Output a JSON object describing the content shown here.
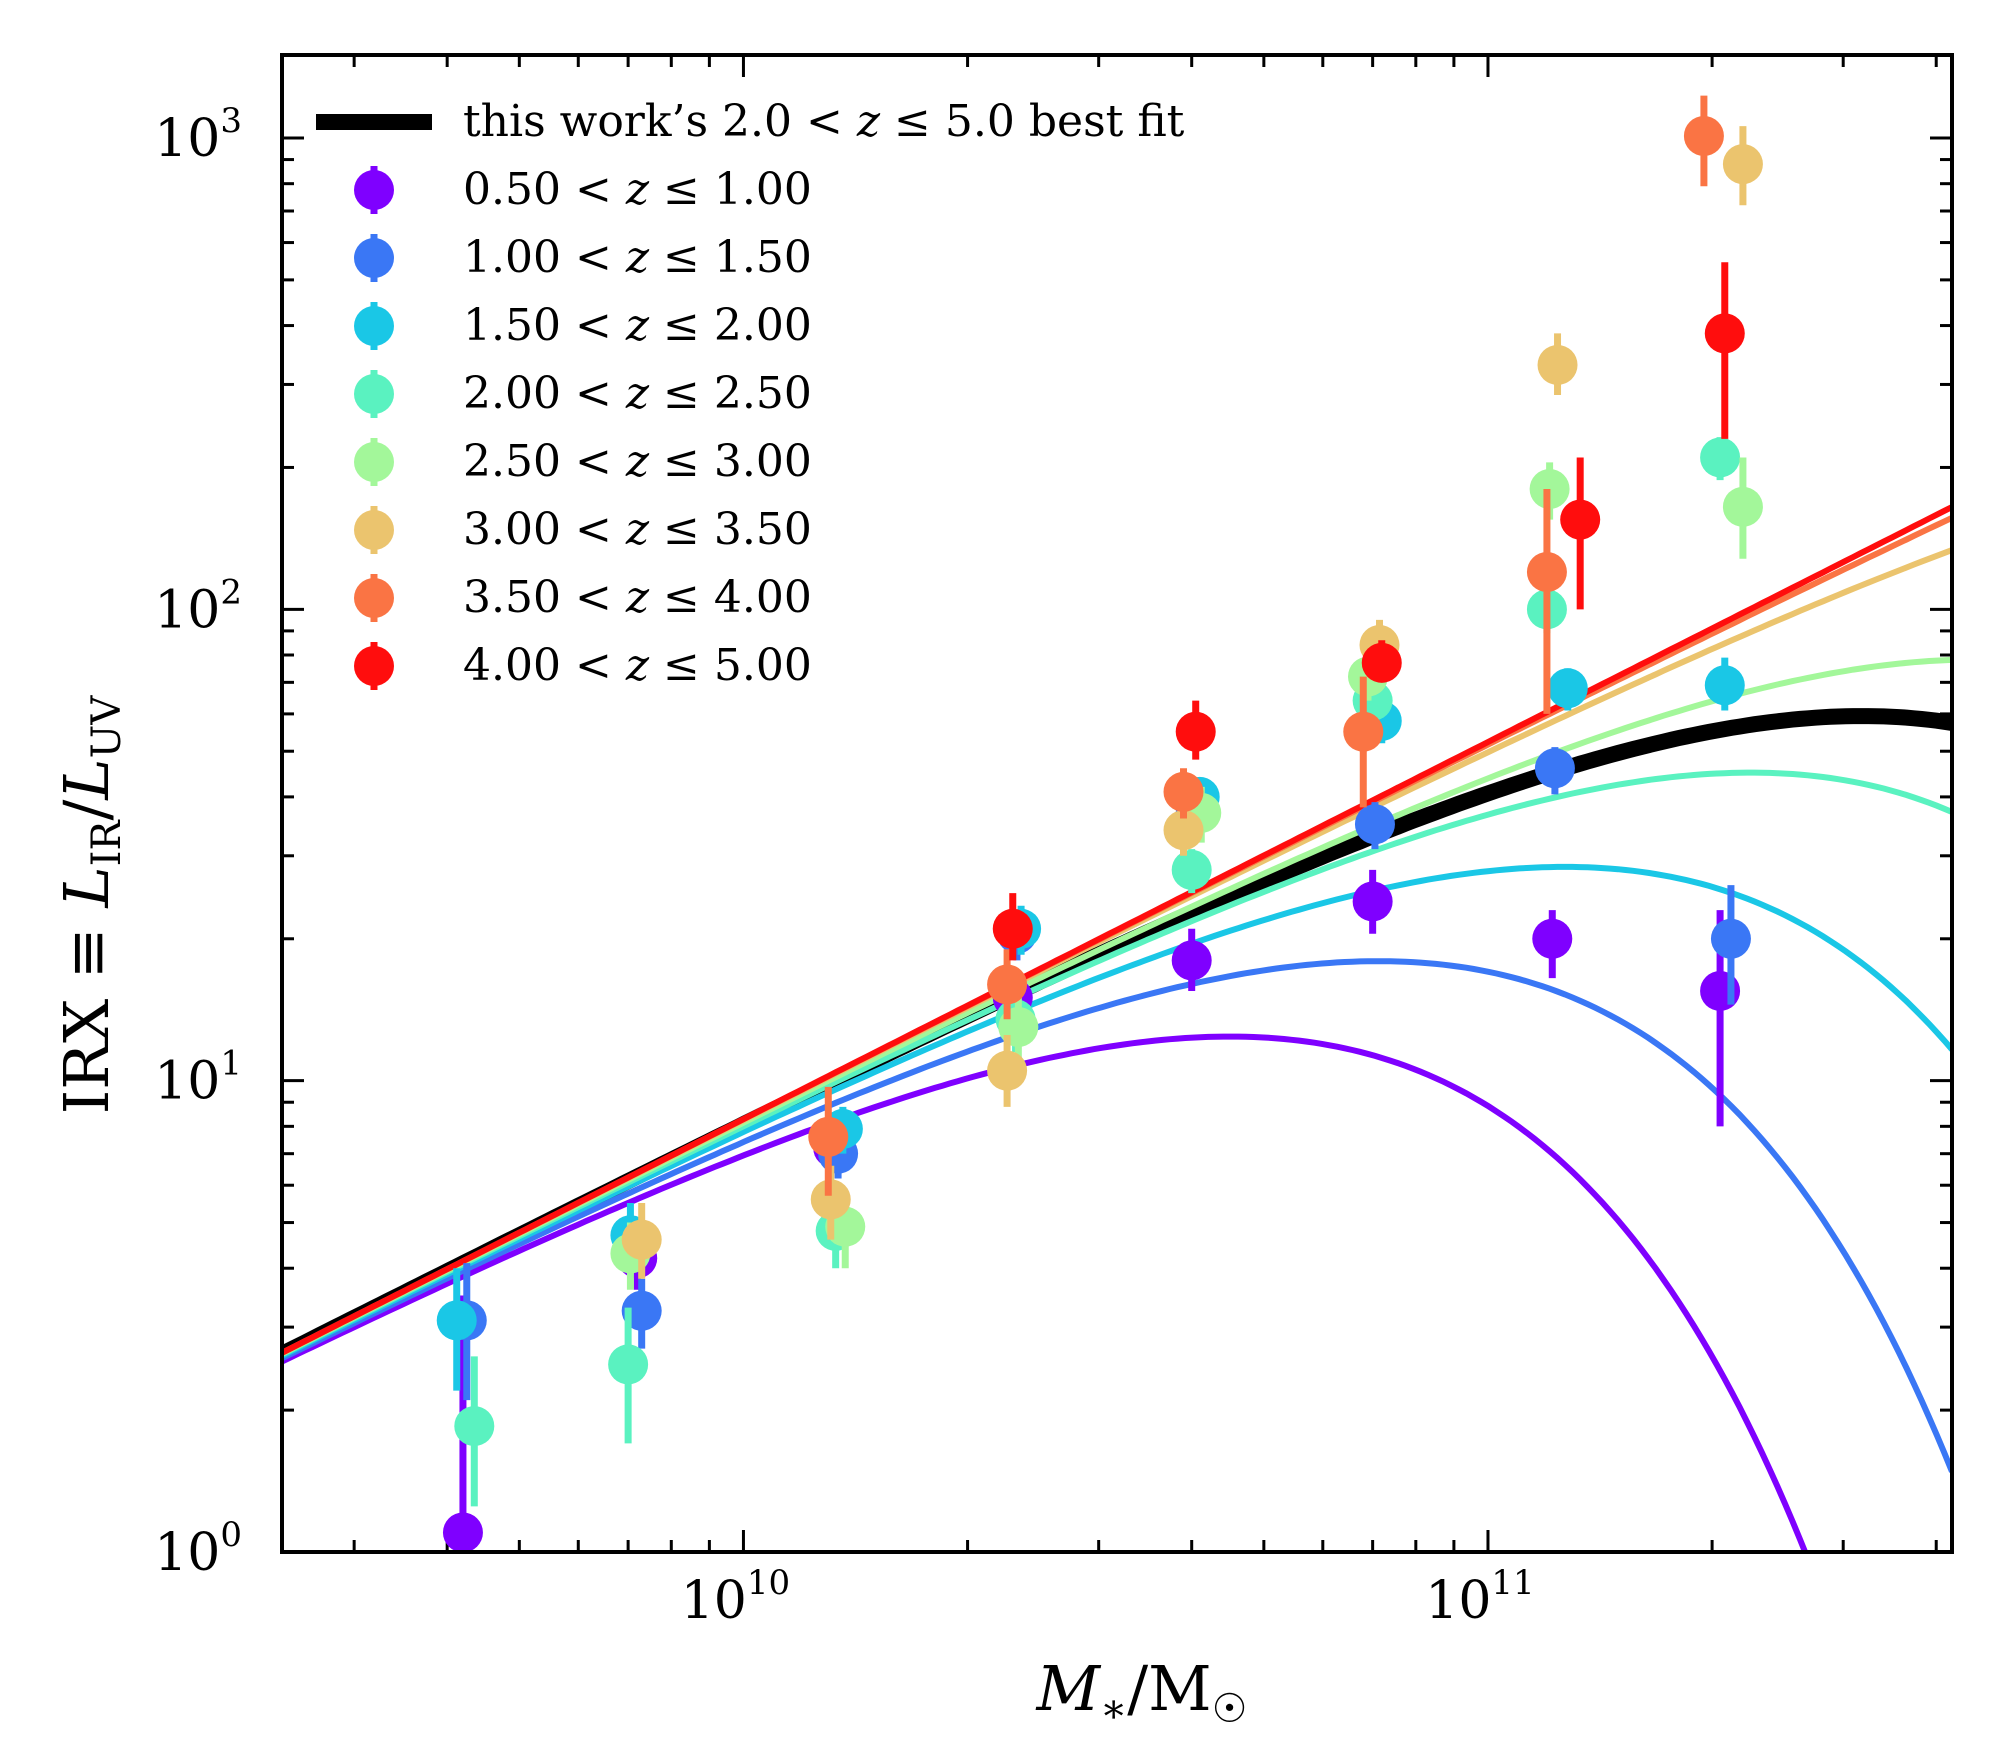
{
  "chart_data": {
    "type": "scatter",
    "title": "",
    "xlabel": "M*/M☉",
    "ylabel": "IRX ≡ L_IR/L_UV",
    "xscale": "log",
    "yscale": "log",
    "xlim": [
      2400000000.0,
      420000000000.0
    ],
    "ylim": [
      1,
      1500
    ],
    "x_ticks": [
      {
        "value": 10000000000.0,
        "base": "10",
        "exp": "10"
      },
      {
        "value": 100000000000.0,
        "base": "10",
        "exp": "11"
      }
    ],
    "y_ticks": [
      {
        "value": 1,
        "base": "10",
        "exp": "0"
      },
      {
        "value": 10,
        "base": "10",
        "exp": "1"
      },
      {
        "value": 100,
        "base": "10",
        "exp": "2"
      },
      {
        "value": 1000,
        "base": "10",
        "exp": "3"
      }
    ],
    "legend_position": "top-left",
    "best_fit": {
      "name": "this work's 2.0 < z ≤ 5.0 best fit",
      "label_parts": [
        "this work’s 2.0 < ",
        "z",
        " ≤ 5.0 best fit"
      ],
      "color": "#000000",
      "params": {
        "A": 3.3,
        "alpha": 0.8,
        "x0_log": 9.5,
        "mc_log": 11.6
      }
    },
    "series": [
      {
        "name": "0.50 < z ≤ 1.00",
        "lo": "0.50",
        "hi": "1.00",
        "color": "#7f00ff",
        "curve": {
          "mc_log": 10.75
        },
        "points": [
          {
            "x": 4200000000.0,
            "y": 1.1,
            "ylo": 1.0,
            "yhi": 3.5
          },
          {
            "x": 7200000000.0,
            "y": 4.2,
            "ylo": 3.6,
            "yhi": 4.9
          },
          {
            "x": 13200000000.0,
            "y": 7.2,
            "ylo": 6.4,
            "yhi": 8.1
          },
          {
            "x": 23000000000.0,
            "y": 15,
            "ylo": 13,
            "yhi": 17
          },
          {
            "x": 40000000000.0,
            "y": 18,
            "ylo": 15.5,
            "yhi": 21
          },
          {
            "x": 70000000000.0,
            "y": 24,
            "ylo": 20.5,
            "yhi": 28
          },
          {
            "x": 122000000000.0,
            "y": 20,
            "ylo": 16.5,
            "yhi": 23
          },
          {
            "x": 205000000000.0,
            "y": 15.5,
            "ylo": 8,
            "yhi": 23
          }
        ]
      },
      {
        "name": "1.00 < z ≤ 1.50",
        "lo": "1.00",
        "hi": "1.50",
        "color": "#3a77f5",
        "curve": {
          "mc_log": 10.95
        },
        "points": [
          {
            "x": 4250000000.0,
            "y": 3.1,
            "ylo": 2.1,
            "yhi": 4.1
          },
          {
            "x": 7300000000.0,
            "y": 3.25,
            "ylo": 2.7,
            "yhi": 3.8
          },
          {
            "x": 13400000000.0,
            "y": 7.0,
            "ylo": 6.2,
            "yhi": 7.9
          },
          {
            "x": 23300000000.0,
            "y": 20.5,
            "ylo": 18,
            "yhi": 23
          },
          {
            "x": 40500000000.0,
            "y": 37,
            "ylo": 33,
            "yhi": 41
          },
          {
            "x": 70500000000.0,
            "y": 35,
            "ylo": 31,
            "yhi": 39
          },
          {
            "x": 123000000000.0,
            "y": 46,
            "ylo": 40.5,
            "yhi": 51
          },
          {
            "x": 212000000000.0,
            "y": 20,
            "ylo": 14.5,
            "yhi": 26
          }
        ]
      },
      {
        "name": "1.50 < z ≤ 2.00",
        "lo": "1.50",
        "hi": "2.00",
        "color": "#1ac7e6",
        "curve": {
          "mc_log": 11.2
        },
        "points": [
          {
            "x": 4120000000.0,
            "y": 3.1,
            "ylo": 2.2,
            "yhi": 4.0
          },
          {
            "x": 7050000000.0,
            "y": 4.7,
            "ylo": 3.9,
            "yhi": 5.5
          },
          {
            "x": 13600000000.0,
            "y": 7.9,
            "ylo": 7.0,
            "yhi": 8.8
          },
          {
            "x": 23600000000.0,
            "y": 21,
            "ylo": 18.5,
            "yhi": 23.5
          },
          {
            "x": 41000000000.0,
            "y": 40,
            "ylo": 36,
            "yhi": 44
          },
          {
            "x": 72000000000.0,
            "y": 58,
            "ylo": 52,
            "yhi": 64
          },
          {
            "x": 128000000000.0,
            "y": 68,
            "ylo": 61,
            "yhi": 75
          },
          {
            "x": 208000000000.0,
            "y": 69,
            "ylo": 61,
            "yhi": 79
          }
        ]
      },
      {
        "name": "2.00 < z ≤ 2.50",
        "lo": "2.00",
        "hi": "2.50",
        "color": "#5af2c0",
        "curve": {
          "mc_log": 11.45
        },
        "points": [
          {
            "x": 4350000000.0,
            "y": 1.85,
            "ylo": 1.25,
            "yhi": 2.6
          },
          {
            "x": 7000000000.0,
            "y": 2.5,
            "ylo": 1.7,
            "yhi": 3.3
          },
          {
            "x": 13300000000.0,
            "y": 4.8,
            "ylo": 4.0,
            "yhi": 5.6
          },
          {
            "x": 23200000000.0,
            "y": 13.5,
            "ylo": 11.5,
            "yhi": 15.5
          },
          {
            "x": 40000000000.0,
            "y": 28,
            "ylo": 25,
            "yhi": 31
          },
          {
            "x": 70000000000.0,
            "y": 64,
            "ylo": 57,
            "yhi": 71
          },
          {
            "x": 120000000000.0,
            "y": 100,
            "ylo": 89,
            "yhi": 111
          },
          {
            "x": 205000000000.0,
            "y": 210,
            "ylo": 188,
            "yhi": 232
          }
        ]
      },
      {
        "name": "2.50 < z ≤ 3.00",
        "lo": "2.50",
        "hi": "3.00",
        "color": "#a3f79a",
        "curve": {
          "mc_log": 11.75
        },
        "points": [
          {
            "x": 7050000000.0,
            "y": 4.3,
            "ylo": 3.6,
            "yhi": 5.0
          },
          {
            "x": 13700000000.0,
            "y": 4.9,
            "ylo": 4.0,
            "yhi": 5.8
          },
          {
            "x": 23400000000.0,
            "y": 13,
            "ylo": 11,
            "yhi": 15
          },
          {
            "x": 41200000000.0,
            "y": 37,
            "ylo": 32,
            "yhi": 42
          },
          {
            "x": 69000000000.0,
            "y": 72,
            "ylo": 64,
            "yhi": 80
          },
          {
            "x": 121000000000.0,
            "y": 180,
            "ylo": 155,
            "yhi": 205
          },
          {
            "x": 220000000000.0,
            "y": 165,
            "ylo": 128,
            "yhi": 210
          }
        ]
      },
      {
        "name": "3.00 < z ≤ 3.50",
        "lo": "3.00",
        "hi": "3.50",
        "color": "#ebc46e",
        "curve": {
          "mc_log": 12.3
        },
        "points": [
          {
            "x": 7300000000.0,
            "y": 4.6,
            "ylo": 3.8,
            "yhi": 5.5
          },
          {
            "x": 13100000000.0,
            "y": 5.6,
            "ylo": 4.6,
            "yhi": 6.6
          },
          {
            "x": 22600000000.0,
            "y": 10.5,
            "ylo": 8.8,
            "yhi": 12.5
          },
          {
            "x": 39000000000.0,
            "y": 34,
            "ylo": 30,
            "yhi": 39
          },
          {
            "x": 71500000000.0,
            "y": 84,
            "ylo": 74,
            "yhi": 95
          },
          {
            "x": 124000000000.0,
            "y": 330,
            "ylo": 285,
            "yhi": 385
          },
          {
            "x": 220000000000.0,
            "y": 880,
            "ylo": 720,
            "yhi": 1060
          }
        ]
      },
      {
        "name": "3.50 < z ≤ 4.00",
        "lo": "3.50",
        "hi": "4.00",
        "color": "#fa7444",
        "curve": {
          "mc_log": 12.9
        },
        "points": [
          {
            "x": 13000000000.0,
            "y": 7.6,
            "ylo": 5.7,
            "yhi": 9.7
          },
          {
            "x": 22600000000.0,
            "y": 16,
            "ylo": 13.5,
            "yhi": 19
          },
          {
            "x": 39000000000.0,
            "y": 41,
            "ylo": 36,
            "yhi": 46
          },
          {
            "x": 68000000000.0,
            "y": 55,
            "ylo": 38,
            "yhi": 72
          },
          {
            "x": 120000000000.0,
            "y": 120,
            "ylo": 60,
            "yhi": 180
          },
          {
            "x": 195000000000.0,
            "y": 1010,
            "ylo": 790,
            "yhi": 1230
          }
        ]
      },
      {
        "name": "4.00 < z ≤ 5.00",
        "lo": "4.00",
        "hi": "5.00",
        "color": "#ff0d0d",
        "curve": {
          "mc_log": 20
        },
        "points": [
          {
            "x": 23000000000.0,
            "y": 21,
            "ylo": 18,
            "yhi": 25
          },
          {
            "x": 40500000000.0,
            "y": 55,
            "ylo": 48,
            "yhi": 64
          },
          {
            "x": 72000000000.0,
            "y": 77,
            "ylo": 70,
            "yhi": 86
          },
          {
            "x": 133000000000.0,
            "y": 155,
            "ylo": 100,
            "yhi": 210
          },
          {
            "x": 208000000000.0,
            "y": 385,
            "ylo": 230,
            "yhi": 545
          }
        ]
      }
    ]
  }
}
